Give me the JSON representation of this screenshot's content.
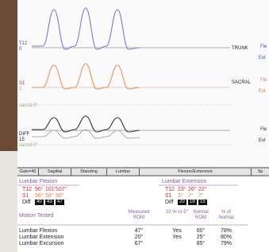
{
  "graph": {
    "traces": [
      {
        "label": "T12",
        "sub": "0",
        "name": "TRUNK"
      },
      {
        "label": "S1",
        "sub": "1",
        "name": "SACRAL"
      },
      {
        "label": "DIFF",
        "sub": "15"
      }
    ],
    "reference_labels": [
      "sacral 0°",
      "sacral 0°"
    ],
    "side_labels": [
      "Fle",
      "Ext",
      "Fle",
      "Ext",
      "Fle",
      "Ext"
    ]
  },
  "tabs": [
    "Gain=40",
    "Sagittal",
    "Standing",
    "Lumbar",
    "Flexion/Extension",
    "Sp"
  ],
  "flexion": {
    "title": "Lumbar Flexion",
    "rows": [
      {
        "label": "T12",
        "values": [
          "96°",
          "101°",
          "107°"
        ]
      },
      {
        "label": "S1",
        "values": [
          "56°",
          "58°",
          "60°"
        ]
      },
      {
        "label": "Diff",
        "values": [
          "40",
          "43",
          "47"
        ]
      }
    ]
  },
  "extension": {
    "title": "Lumbar Extension",
    "rows": [
      {
        "label": "T12",
        "values": [
          "23°",
          "26°",
          "22°"
        ]
      },
      {
        "label": "S1",
        "values": [
          "3°",
          "7°",
          "7°"
        ]
      },
      {
        "label": "Diff",
        "values": [
          "20",
          "19",
          "15"
        ]
      }
    ]
  },
  "motion": {
    "headers": [
      "Motion Tested",
      "Measured ROM",
      "10 % or 5°",
      "Normal ROM",
      "% of Normal"
    ],
    "rows": [
      [
        "Lumbar Flexion",
        "47°",
        "Yes",
        "60°",
        "78%"
      ],
      [
        "Lumbar Extension",
        "20°",
        "Yes",
        "25°",
        "80%"
      ],
      [
        "Lumbar Excursion",
        "67°",
        "",
        "85°",
        "79%"
      ]
    ]
  }
}
